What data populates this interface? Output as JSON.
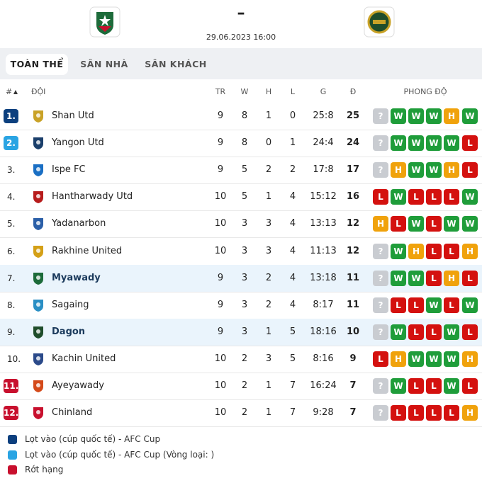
{
  "header": {
    "score": "–",
    "datetime": "29.06.2023 16:00"
  },
  "tabs": [
    "TOÀN THỂ",
    "SÂN NHÀ",
    "SÂN KHÁCH"
  ],
  "table": {
    "columns": [
      "#",
      "ĐỘI",
      "TR",
      "W",
      "H",
      "L",
      "G",
      "Đ",
      "PHONG ĐỘ"
    ],
    "form_colors": {
      "?": "#c9ccd1",
      "W": "#1f9d3a",
      "H": "#f0a20c",
      "L": "#d4110f"
    },
    "rows": [
      {
        "rank": "1.",
        "team": "Shan Utd",
        "tr": 9,
        "w": 8,
        "h": 1,
        "l": 0,
        "g": "25:8",
        "pts": 25,
        "form": [
          "?",
          "W",
          "W",
          "W",
          "H",
          "W"
        ],
        "badge_color": "#0c3f7e"
      },
      {
        "rank": "2.",
        "team": "Yangon Utd",
        "tr": 9,
        "w": 8,
        "h": 0,
        "l": 1,
        "g": "24:4",
        "pts": 24,
        "form": [
          "?",
          "W",
          "W",
          "W",
          "W",
          "L"
        ],
        "badge_color": "#2aa4e3"
      },
      {
        "rank": "3.",
        "team": "Ispe FC",
        "tr": 9,
        "w": 5,
        "h": 2,
        "l": 2,
        "g": "17:8",
        "pts": 17,
        "form": [
          "?",
          "H",
          "W",
          "W",
          "H",
          "L"
        ]
      },
      {
        "rank": "4.",
        "team": "Hantharwady Utd",
        "tr": 10,
        "w": 5,
        "h": 1,
        "l": 4,
        "g": "15:12",
        "pts": 16,
        "form": [
          "L",
          "W",
          "L",
          "L",
          "L",
          "W"
        ]
      },
      {
        "rank": "5.",
        "team": "Yadanarbon",
        "tr": 10,
        "w": 3,
        "h": 3,
        "l": 4,
        "g": "13:13",
        "pts": 12,
        "form": [
          "H",
          "L",
          "W",
          "L",
          "W",
          "W"
        ]
      },
      {
        "rank": "6.",
        "team": "Rakhine United",
        "tr": 10,
        "w": 3,
        "h": 3,
        "l": 4,
        "g": "11:13",
        "pts": 12,
        "form": [
          "?",
          "W",
          "H",
          "L",
          "L",
          "H"
        ]
      },
      {
        "rank": "7.",
        "team": "Myawady",
        "tr": 9,
        "w": 3,
        "h": 2,
        "l": 4,
        "g": "13:18",
        "pts": 11,
        "form": [
          "?",
          "W",
          "W",
          "L",
          "H",
          "L"
        ],
        "highlight": true
      },
      {
        "rank": "8.",
        "team": "Sagaing",
        "tr": 9,
        "w": 3,
        "h": 2,
        "l": 4,
        "g": "8:17",
        "pts": 11,
        "form": [
          "?",
          "L",
          "L",
          "W",
          "L",
          "W"
        ]
      },
      {
        "rank": "9.",
        "team": "Dagon",
        "tr": 9,
        "w": 3,
        "h": 1,
        "l": 5,
        "g": "18:16",
        "pts": 10,
        "form": [
          "?",
          "W",
          "L",
          "L",
          "W",
          "L"
        ],
        "highlight": true
      },
      {
        "rank": "10.",
        "team": "Kachin United",
        "tr": 10,
        "w": 2,
        "h": 3,
        "l": 5,
        "g": "8:16",
        "pts": 9,
        "form": [
          "L",
          "H",
          "W",
          "W",
          "W",
          "H"
        ]
      },
      {
        "rank": "11.",
        "team": "Ayeyawady",
        "tr": 10,
        "w": 2,
        "h": 1,
        "l": 7,
        "g": "16:24",
        "pts": 7,
        "form": [
          "?",
          "W",
          "L",
          "L",
          "W",
          "L"
        ],
        "badge_color": "#c8102e"
      },
      {
        "rank": "12.",
        "team": "Chinland",
        "tr": 10,
        "w": 2,
        "h": 1,
        "l": 7,
        "g": "9:28",
        "pts": 7,
        "form": [
          "?",
          "L",
          "L",
          "L",
          "L",
          "H"
        ],
        "badge_color": "#c8102e"
      }
    ]
  },
  "legend": [
    {
      "label": "Lọt vào (cúp quốc tế) - AFC Cup",
      "color": "#0c3f7e"
    },
    {
      "label": "Lọt vào (cúp quốc tế) - AFC Cup (Vòng loại: )",
      "color": "#2aa4e3"
    },
    {
      "label": "Rớt hạng",
      "color": "#c8102e"
    }
  ]
}
